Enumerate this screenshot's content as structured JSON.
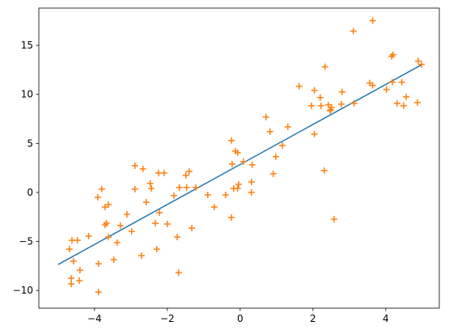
{
  "chart_data": {
    "type": "scatter",
    "xlim": [
      -5.53,
      5.47
    ],
    "ylim": [
      -11.8,
      18.8
    ],
    "xticks": [
      {
        "value": -4,
        "label": "−4"
      },
      {
        "value": -2,
        "label": "−2"
      },
      0,
      2,
      4
    ],
    "yticks": [
      {
        "value": -10,
        "label": "−10"
      },
      {
        "value": -5,
        "label": "−5"
      },
      0,
      5,
      10,
      15
    ],
    "grid": false,
    "series": [
      {
        "type": "line",
        "color": "#1f77b4",
        "x": [
          -5,
          5
        ],
        "values": [
          -7.35,
          13.05
        ]
      },
      {
        "type": "scatter",
        "marker": "+",
        "color": "#ff7f0e",
        "x": [
          -4.69,
          -4.62,
          -4.58,
          -4.64,
          -4.64,
          -4.47,
          -4.4,
          -4.42,
          -4.16,
          -3.91,
          -3.8,
          -3.71,
          -3.62,
          -3.71,
          -3.67,
          -3.62,
          -3.89,
          -3.89,
          -3.47,
          -3.38,
          -3.29,
          -3.11,
          -2.98,
          -2.89,
          -2.89,
          -2.71,
          -2.67,
          -2.58,
          -2.47,
          -2.44,
          -2.33,
          -2.29,
          -2.24,
          -2.22,
          -2.09,
          -2.0,
          -1.82,
          -1.73,
          -1.69,
          -1.67,
          -1.49,
          -1.4,
          -1.47,
          -1.33,
          -1.22,
          -0.89,
          -0.71,
          -0.4,
          -0.24,
          -0.24,
          -0.22,
          -0.18,
          -0.13,
          -0.07,
          -0.04,
          -0.07,
          0.09,
          0.33,
          0.31,
          0.31,
          0.71,
          0.82,
          0.91,
          0.98,
          1.16,
          1.31,
          1.62,
          1.96,
          2.04,
          2.04,
          2.2,
          2.22,
          2.31,
          2.33,
          2.42,
          2.47,
          2.51,
          2.49,
          2.58,
          2.8,
          2.78,
          3.13,
          3.11,
          3.56,
          3.64,
          3.64,
          4.02,
          4.16,
          4.2,
          4.18,
          4.31,
          4.44,
          4.49,
          4.56,
          4.87,
          4.89,
          4.98
        ],
        "values": [
          -5.79,
          -4.88,
          -7.02,
          -8.76,
          -9.34,
          -4.88,
          -7.93,
          -9.0,
          -4.46,
          -0.5,
          0.33,
          -1.49,
          -1.24,
          -3.31,
          -3.14,
          -4.55,
          -7.27,
          -10.17,
          -6.86,
          -5.12,
          -3.39,
          -2.23,
          -3.97,
          2.73,
          0.33,
          -6.45,
          2.4,
          -0.99,
          0.91,
          0.41,
          -3.14,
          -5.79,
          1.98,
          -2.07,
          1.98,
          -3.22,
          -0.33,
          -4.55,
          -8.18,
          0.5,
          1.74,
          2.15,
          0.5,
          -3.64,
          0.5,
          -0.25,
          -1.49,
          -0.25,
          -2.56,
          5.29,
          2.89,
          0.41,
          4.21,
          4.05,
          0.83,
          0.41,
          3.14,
          2.81,
          1.07,
          0,
          7.69,
          6.2,
          1.9,
          3.64,
          4.79,
          6.69,
          10.83,
          8.84,
          5.95,
          10.41,
          9.67,
          8.84,
          2.23,
          12.81,
          8.93,
          8.35,
          8.68,
          8.43,
          -2.73,
          10.25,
          9.01,
          9.09,
          16.45,
          11.16,
          10.91,
          17.52,
          10.5,
          13.88,
          14.05,
          11.24,
          9.09,
          11.24,
          8.84,
          9.75,
          9.17,
          13.39,
          13.06
        ]
      }
    ]
  }
}
